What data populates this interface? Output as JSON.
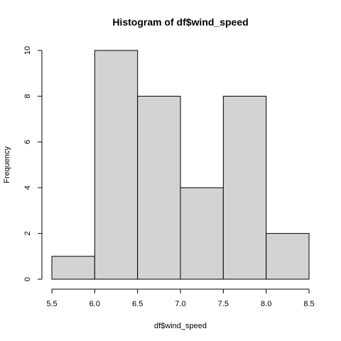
{
  "chart_data": {
    "type": "histogram",
    "title": "Histogram of df$wind_speed",
    "xlabel": "df$wind_speed",
    "ylabel": "Frequency",
    "bins": [
      {
        "start": 5.5,
        "end": 6.0,
        "count": 1
      },
      {
        "start": 6.0,
        "end": 6.5,
        "count": 10
      },
      {
        "start": 6.5,
        "end": 7.0,
        "count": 8
      },
      {
        "start": 7.0,
        "end": 7.5,
        "count": 4
      },
      {
        "start": 7.5,
        "end": 8.0,
        "count": 8
      },
      {
        "start": 8.0,
        "end": 8.5,
        "count": 2
      }
    ],
    "xlim": [
      5.5,
      8.5
    ],
    "ylim": [
      0,
      10
    ],
    "x_ticks": [
      "5.5",
      "6.0",
      "6.5",
      "7.0",
      "7.5",
      "8.0",
      "8.5"
    ],
    "y_ticks": [
      "0",
      "2",
      "4",
      "6",
      "8",
      "10"
    ],
    "bar_color": "#d3d3d3",
    "grid": false,
    "legend": "none"
  }
}
